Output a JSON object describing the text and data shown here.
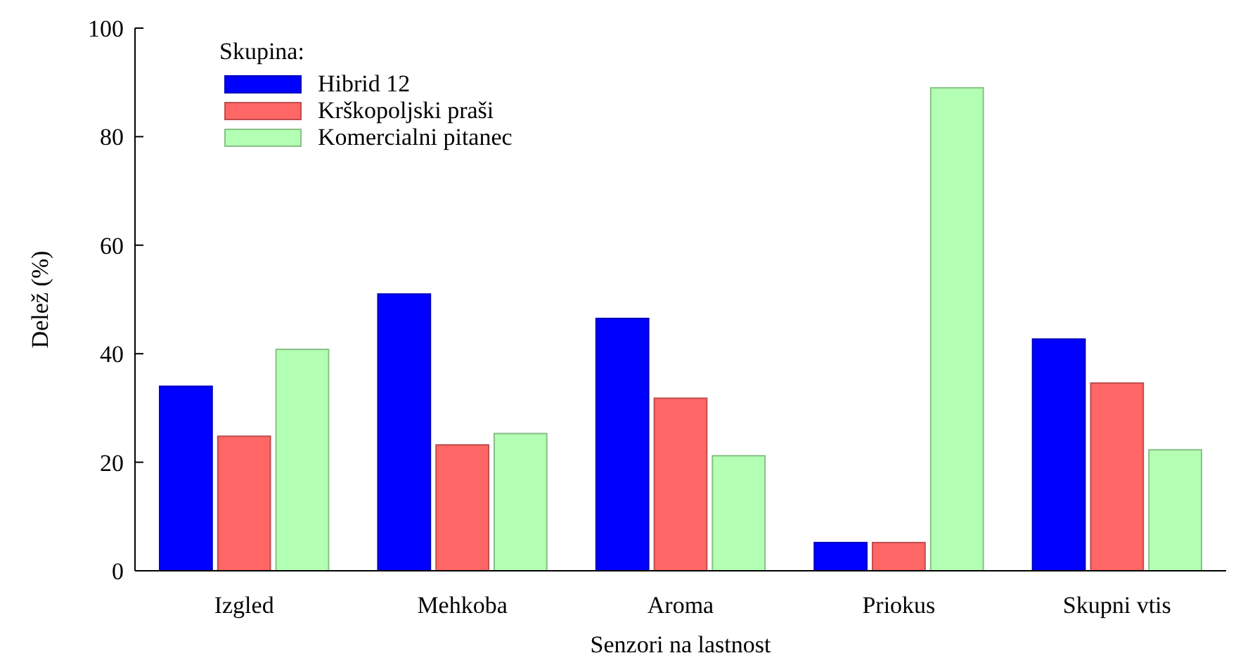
{
  "chart_data": {
    "type": "bar",
    "xlabel": "Senzori na lastnost",
    "ylabel": "Delež (%)",
    "legend_title": "Skupina:",
    "legend": "top left",
    "grid": false,
    "categories": [
      "Izgled",
      "Mehkoba",
      "Aroma",
      "Priokus",
      "Skupni vtis"
    ],
    "ylim": [
      0,
      100
    ],
    "yticks": [
      0,
      20,
      40,
      60,
      80,
      100
    ],
    "series": [
      {
        "name": "Hibrid 12",
        "color": "#0000ff",
        "values": [
          34,
          51,
          46.5,
          5.2,
          42.7
        ]
      },
      {
        "name": "Krškopoljski praši",
        "color": "#ff6666",
        "values": [
          24.8,
          23.2,
          31.8,
          5.2,
          34.6
        ]
      },
      {
        "name": "Komercialni pitanec",
        "color": "#b3ffb3",
        "values": [
          40.8,
          25.3,
          21.2,
          89,
          22.3
        ]
      }
    ]
  }
}
